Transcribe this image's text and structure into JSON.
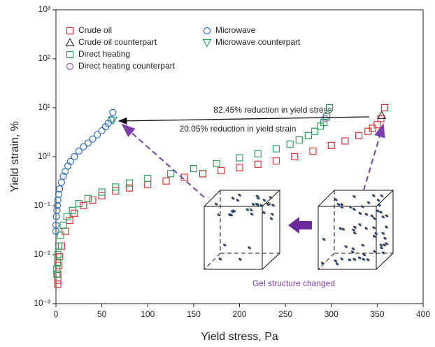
{
  "chart_data": {
    "type": "scatter",
    "x_label": "Yield stress, Pa",
    "y_label": "Yield strain, %",
    "xlim": [
      0,
      400
    ],
    "xticks": [
      0,
      50,
      100,
      150,
      200,
      250,
      300,
      350,
      400
    ],
    "ylim": [
      0.001,
      1000
    ],
    "y_scale": "log",
    "yticks": [
      {
        "value": 0.001,
        "label": "10⁻³"
      },
      {
        "value": 0.01,
        "label": "10⁻²"
      },
      {
        "value": 0.1,
        "label": "10⁻¹"
      },
      {
        "value": 1,
        "label": "10⁰"
      },
      {
        "value": 10,
        "label": "10¹"
      },
      {
        "value": 100,
        "label": "10²"
      },
      {
        "value": 1000,
        "label": "10³"
      }
    ],
    "series": [
      {
        "name": "Crude oil",
        "color": "#e8313a",
        "marker": "square",
        "x": [
          2,
          2,
          2,
          3,
          4,
          6,
          10,
          15,
          20,
          30,
          40,
          50,
          65,
          80,
          100,
          120,
          140,
          160,
          180,
          200,
          220,
          240,
          260,
          280,
          300,
          315,
          330,
          340,
          345,
          350,
          354,
          358
        ],
        "values": [
          0.0025,
          0.003,
          0.004,
          0.006,
          0.009,
          0.015,
          0.03,
          0.05,
          0.07,
          0.1,
          0.13,
          0.16,
          0.2,
          0.23,
          0.27,
          0.32,
          0.38,
          0.45,
          0.52,
          0.6,
          0.7,
          0.82,
          1.0,
          1.3,
          1.7,
          2.1,
          2.7,
          3.3,
          3.8,
          4.5,
          6,
          10
        ]
      },
      {
        "name": "Crude oil counterpart",
        "color": "#333333",
        "marker": "triangle-up",
        "x": [
          355
        ],
        "values": [
          7
        ]
      },
      {
        "name": "Direct heating",
        "color": "#2ca35a",
        "marker": "square",
        "x": [
          1,
          1,
          1.5,
          2,
          3,
          5,
          8,
          12,
          18,
          25,
          35,
          50,
          65,
          80,
          100,
          125,
          150,
          175,
          200,
          220,
          240,
          255,
          265,
          275,
          282,
          288,
          292,
          295,
          298
        ],
        "values": [
          0.004,
          0.005,
          0.007,
          0.01,
          0.015,
          0.025,
          0.04,
          0.06,
          0.08,
          0.11,
          0.14,
          0.19,
          0.24,
          0.29,
          0.36,
          0.45,
          0.57,
          0.72,
          0.95,
          1.15,
          1.45,
          1.8,
          2.2,
          2.7,
          3.3,
          4.2,
          5,
          6.5,
          10
        ]
      },
      {
        "name": "Direct heating counterpart",
        "color": "#9b59d0",
        "marker": "circle",
        "x": [
          293
        ],
        "values": [
          6
        ]
      },
      {
        "name": "Microwave",
        "color": "#2f6fbf",
        "marker": "circle",
        "x": [
          0,
          0,
          0.5,
          1,
          1.5,
          2,
          3,
          4,
          6,
          8,
          10,
          13,
          16,
          20,
          25,
          30,
          35,
          40,
          45,
          50,
          54,
          57,
          60,
          62
        ],
        "values": [
          0.03,
          0.04,
          0.06,
          0.08,
          0.1,
          0.13,
          0.17,
          0.22,
          0.3,
          0.4,
          0.5,
          0.65,
          0.8,
          1.0,
          1.3,
          1.6,
          1.9,
          2.3,
          2.8,
          3.4,
          4.1,
          4.8,
          5.8,
          8
        ]
      },
      {
        "name": "Microwave counterpart",
        "color": "#2ca35a",
        "marker": "triangle-down",
        "x": [
          62
        ],
        "values": [
          5.5
        ]
      }
    ],
    "annotations": [
      "82.45% reduction in yield stress",
      "20.05% reduction in yield strain",
      "Gel structure changed"
    ]
  }
}
